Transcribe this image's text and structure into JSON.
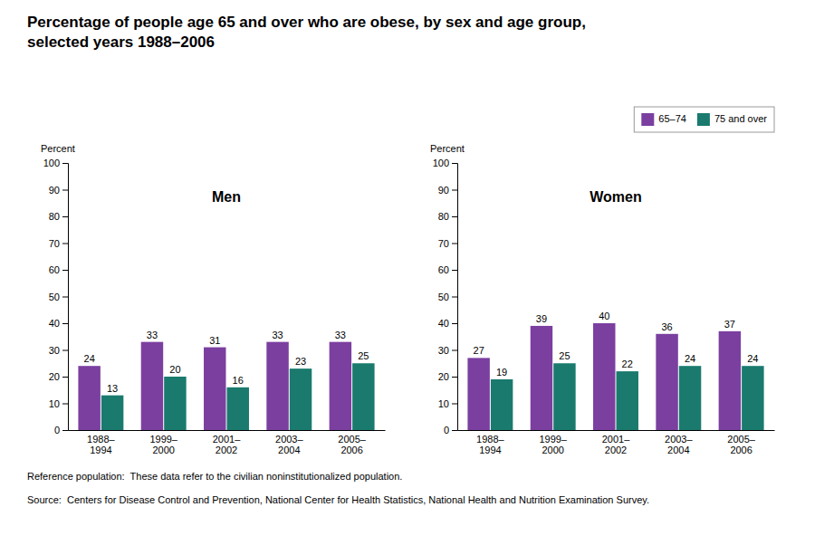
{
  "title": "Percentage of people age 65 and over who are obese, by sex and age group,\nselected years 1988–2006",
  "annotations": [
    "Reference population:  These data refer to the civilian noninstitutionalized population.",
    "Source:  Centers for Disease Control and Prevention, National Center for Health Statistics, National Health and Nutrition Examination Survey."
  ],
  "chart_data": [
    {
      "type": "bar",
      "title": "Men",
      "ylabel": "Percent",
      "categories": [
        "1988–\n1994",
        "1999–\n2000",
        "2001–\n2002",
        "2003–\n2004",
        "2005–\n2006"
      ],
      "series": [
        {
          "name": "65–74",
          "color": "#7B3FA0",
          "values": [
            24,
            33,
            31,
            33,
            33
          ]
        },
        {
          "name": "75 and over",
          "color": "#1A7A6E",
          "values": [
            13,
            20,
            16,
            23,
            25
          ]
        }
      ],
      "ylim": [
        0,
        100
      ],
      "yticks": [
        0,
        10,
        20,
        30,
        40,
        50,
        60,
        70,
        80,
        90,
        100
      ],
      "grid": false,
      "data_labels": true
    },
    {
      "type": "bar",
      "title": "Women",
      "ylabel": "Percent",
      "categories": [
        "1988–\n1994",
        "1999–\n2000",
        "2001–\n2002",
        "2003–\n2004",
        "2005–\n2006"
      ],
      "series": [
        {
          "name": "65–74",
          "color": "#7B3FA0",
          "values": [
            27,
            39,
            40,
            36,
            37
          ]
        },
        {
          "name": "75 and over",
          "color": "#1A7A6E",
          "values": [
            19,
            25,
            22,
            24,
            24
          ]
        }
      ],
      "ylim": [
        0,
        100
      ],
      "yticks": [
        0,
        10,
        20,
        30,
        40,
        50,
        60,
        70,
        80,
        90,
        100
      ],
      "grid": false,
      "data_labels": true,
      "legend": "upper right"
    }
  ]
}
